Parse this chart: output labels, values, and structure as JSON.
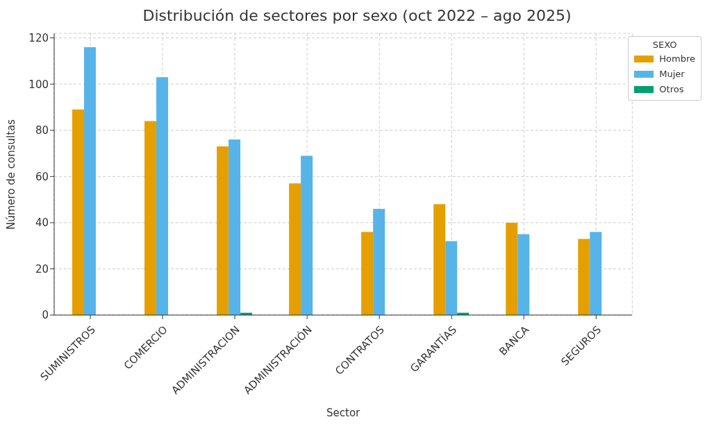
{
  "chart_data": {
    "type": "bar",
    "title": "Distribución de sectores por sexo (oct 2022 – ago 2025)",
    "xlabel": "Sector",
    "ylabel": "Número de consultas",
    "legend_title": "SEXO",
    "categories": [
      "SUMINISTROS",
      "COMERCIO",
      "ADMINISTRACION",
      "ADMINISTRACIÓN",
      "CONTRATOS",
      "GARANTÍAS",
      "BANCA",
      "SEGUROS"
    ],
    "series": [
      {
        "name": "Hombre",
        "color": "#e69f00",
        "values": [
          89,
          84,
          73,
          57,
          36,
          48,
          40,
          33
        ]
      },
      {
        "name": "Mujer",
        "color": "#56b4e9",
        "values": [
          116,
          103,
          76,
          69,
          46,
          32,
          35,
          36
        ]
      },
      {
        "name": "Otros",
        "color": "#009e73",
        "values": [
          0,
          0,
          1,
          0,
          0,
          1,
          0,
          0
        ]
      }
    ],
    "ylim": [
      0,
      122
    ],
    "yticks": [
      0,
      20,
      40,
      60,
      80,
      100,
      120
    ],
    "grid": true,
    "legend": "top right"
  }
}
